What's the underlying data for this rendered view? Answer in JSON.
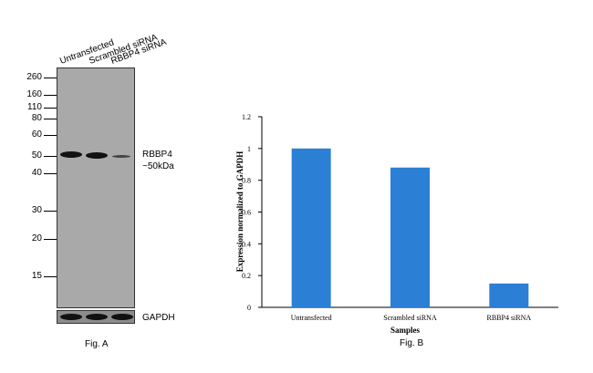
{
  "western_blot": {
    "lanes": [
      "Untransfected",
      "Scrambled siRNA",
      "RBBP4 siRNA"
    ],
    "mw_markers": [
      "260",
      "160",
      "110",
      "80",
      "60",
      "50",
      "40",
      "30",
      "20",
      "15"
    ],
    "target_label_line1": "RBBP4",
    "target_label_line2": "~50kDa",
    "loading_control": "GAPDH",
    "caption": "Fig. A"
  },
  "chart_data": {
    "type": "bar",
    "categories": [
      "Untransfected",
      "Scrambled siRNA",
      "RBBP4 siRNA"
    ],
    "values": [
      1.0,
      0.88,
      0.15
    ],
    "xlabel": "Samples",
    "ylabel": "Expression normalized to GAPDH",
    "ylim": [
      0,
      1.2
    ],
    "yticks": [
      "0",
      "0.2",
      "0.4",
      "0.6",
      "0.8",
      "1",
      "1.2"
    ],
    "bar_color": "#2b7fd4",
    "grid": false,
    "caption": "Fig. B"
  }
}
